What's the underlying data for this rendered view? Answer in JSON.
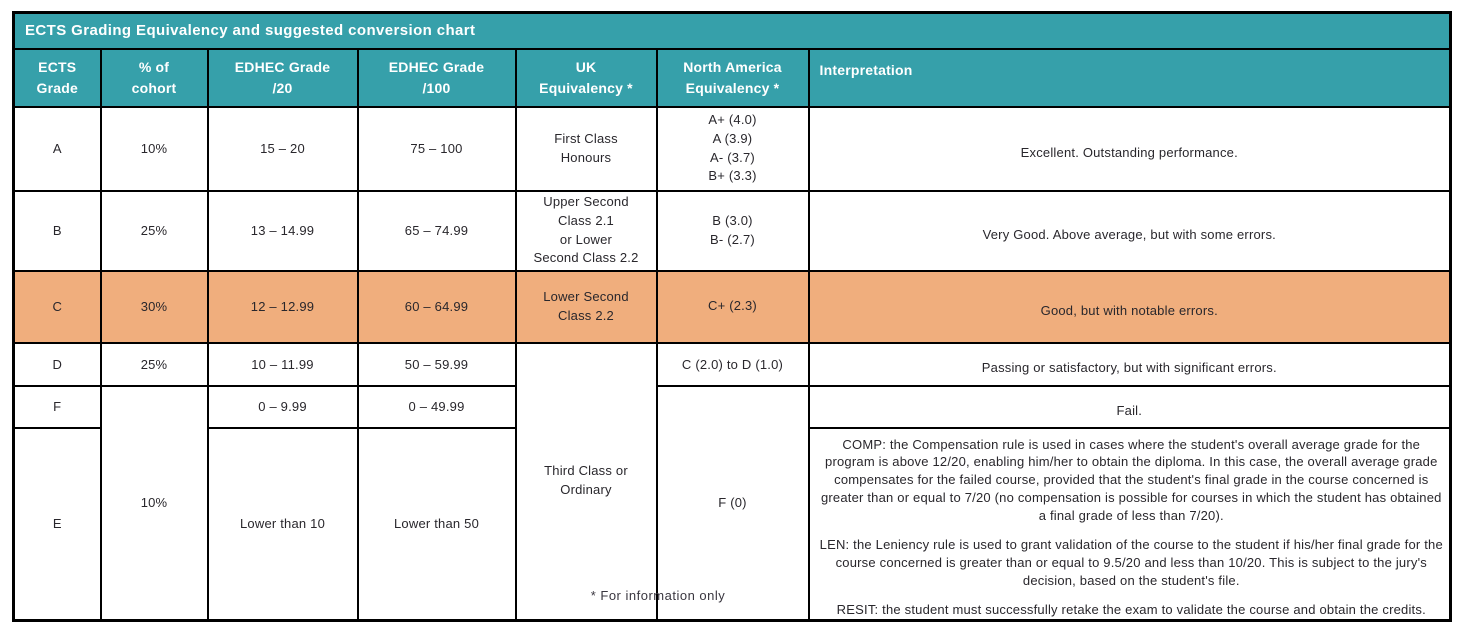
{
  "page": {
    "footnote": "* For information only"
  },
  "colors": {
    "teal_header": "#36a0aa",
    "highlight_orange": "#f0ae7d",
    "border": "#000000",
    "header_text": "#ffffff",
    "body_text": "#29272c"
  },
  "table": {
    "title": "ECTS Grading Equivalency and suggested conversion chart",
    "headers": {
      "ects": [
        "ECTS",
        "Grade"
      ],
      "cohort": [
        "% of",
        "cohort"
      ],
      "edhec20": [
        "EDHEC Grade",
        "/20"
      ],
      "edhec100": [
        "EDHEC Grade",
        "/100"
      ],
      "uk": [
        "UK",
        "Equivalency *"
      ],
      "na": [
        "North America",
        "Equivalency *"
      ],
      "interpretation": "Interpretation"
    },
    "rows": {
      "a": {
        "grade": "A",
        "cohort": "10%",
        "edhec20": "15 – 20",
        "edhec100": "75 – 100",
        "uk": [
          "First Class",
          "Honours"
        ],
        "na": [
          "A+ (4.0)",
          "A (3.9)",
          "A- (3.7)",
          "B+ (3.3)"
        ],
        "interp": "Excellent. Outstanding performance."
      },
      "b": {
        "grade": "B",
        "cohort": "25%",
        "edhec20": "13 – 14.99",
        "edhec100": "65 – 74.99",
        "uk": [
          "Upper Second",
          "Class 2.1",
          "or Lower",
          "Second Class 2.2"
        ],
        "na": [
          "B (3.0)",
          "B- (2.7)"
        ],
        "interp": "Very Good. Above average, but with some errors."
      },
      "c": {
        "grade": "C",
        "cohort": "30%",
        "edhec20": "12 – 12.99",
        "edhec100": "60 – 64.99",
        "uk": [
          "Lower Second",
          "Class 2.2"
        ],
        "na": [
          "C+ (2.3)"
        ],
        "interp": "Good, but with notable errors."
      },
      "d": {
        "grade": "D",
        "cohort": "25%",
        "edhec20": "10 – 11.99",
        "edhec100": "50 – 59.99",
        "na": "C (2.0) to D (1.0)",
        "interp": "Passing or satisfactory, but with significant errors."
      },
      "f": {
        "grade": "F",
        "edhec20": "0 – 9.99",
        "edhec100": "0 – 49.99",
        "interp": "Fail."
      },
      "e": {
        "grade": "E",
        "edhec20": "Lower than 10",
        "edhec100": "Lower than 50",
        "interp_paragraphs": [
          "COMP: the Compensation rule is used in cases where the student's overall average grade for the program is above 12/20, enabling him/her to obtain the diploma. In this case, the overall average grade compensates for the failed course, provided that the student's final grade in the course concerned is greater than or equal to 7/20 (no compensation is possible for courses in which the student has obtained a final grade of less than 7/20).",
          "LEN: the Leniency rule is used to grant validation of the course to the student if his/her final grade for the course concerned is greater than or equal to 9.5/20 and less than 10/20. This is subject to the jury's decision, based on the student's file.",
          "RESIT: the student must successfully retake the exam to validate the course and obtain the credits."
        ]
      },
      "merged": {
        "cohort_fe": "10%",
        "uk_dfe": [
          "Third Class or",
          "Ordinary"
        ],
        "na_fe": "F (0)"
      }
    }
  }
}
